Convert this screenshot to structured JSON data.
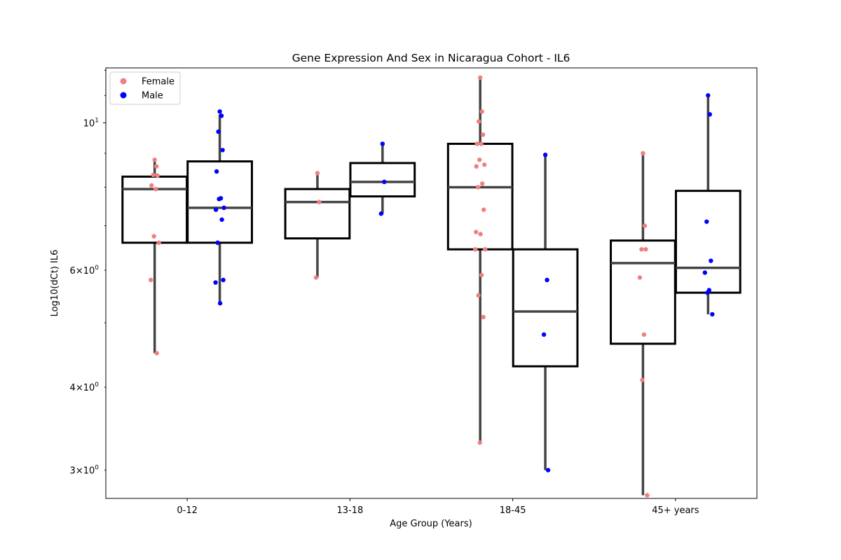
{
  "chart_data": {
    "type": "box",
    "title": "Gene Expression And Sex in Nicaragua Cohort - IL6",
    "xlabel": "Age Group (Years)",
    "ylabel": "Log10(dCt) IL6",
    "yscale": "log",
    "ylim": [
      2.72,
      12.1
    ],
    "categories": [
      "0-12",
      "13-18",
      "18-45",
      "45+ years"
    ],
    "y_ticks": [
      {
        "value": 3,
        "base": "3×10",
        "exp": "0"
      },
      {
        "value": 4,
        "base": "4×10",
        "exp": "0"
      },
      {
        "value": 6,
        "base": "6×10",
        "exp": "0"
      },
      {
        "value": 10,
        "base": "10",
        "exp": "1"
      }
    ],
    "legend": {
      "placement": "upper-left"
    },
    "colors": {
      "Female": "#f08080",
      "Male": "#0000ff",
      "box": "#000000",
      "whisker": "#444444"
    },
    "series": [
      {
        "name": "Female",
        "boxes": [
          {
            "category": "0-12",
            "whisker_low": 4.5,
            "q1": 6.6,
            "median": 7.95,
            "q3": 8.3,
            "whisker_high": 8.8
          },
          {
            "category": "13-18",
            "whisker_low": 5.85,
            "q1": 6.7,
            "median": 7.6,
            "q3": 7.95,
            "whisker_high": 8.4
          },
          {
            "category": "18-45",
            "whisker_low": 3.3,
            "q1": 6.45,
            "median": 8.0,
            "q3": 9.3,
            "whisker_high": 11.7
          },
          {
            "category": "45+ years",
            "whisker_low": 2.75,
            "q1": 4.65,
            "median": 6.15,
            "q3": 6.65,
            "whisker_high": 9.0
          }
        ],
        "points": [
          {
            "category": "0-12",
            "y": [
              8.8,
              8.6,
              8.35,
              8.33,
              8.05,
              7.95,
              6.75,
              6.6,
              5.8,
              4.5
            ]
          },
          {
            "category": "13-18",
            "y": [
              8.4,
              7.6,
              5.85
            ]
          },
          {
            "category": "18-45",
            "y": [
              11.7,
              10.4,
              10.05,
              9.6,
              9.3,
              9.3,
              8.8,
              8.65,
              8.6,
              8.1,
              8.0,
              7.4,
              6.85,
              6.8,
              6.45,
              6.45,
              5.9,
              5.5,
              5.1,
              3.3
            ]
          },
          {
            "category": "45+ years",
            "y": [
              9.0,
              7.0,
              6.45,
              6.45,
              5.85,
              4.8,
              4.1,
              2.75
            ]
          }
        ]
      },
      {
        "name": "Male",
        "boxes": [
          {
            "category": "0-12",
            "whisker_low": 5.35,
            "q1": 6.6,
            "median": 7.45,
            "q3": 8.75,
            "whisker_high": 10.3
          },
          {
            "category": "13-18",
            "whisker_low": 7.3,
            "q1": 7.75,
            "median": 8.15,
            "q3": 8.7,
            "whisker_high": 9.3
          },
          {
            "category": "18-45",
            "whisker_low": 3.0,
            "q1": 4.3,
            "median": 5.2,
            "q3": 6.45,
            "whisker_high": 8.95
          },
          {
            "category": "45+ years",
            "whisker_low": 5.15,
            "q1": 5.55,
            "median": 6.05,
            "q3": 7.9,
            "whisker_high": 11.0
          }
        ],
        "points": [
          {
            "category": "0-12",
            "y": [
              10.4,
              10.25,
              9.7,
              9.1,
              8.45,
              7.7,
              7.68,
              7.45,
              7.4,
              7.15,
              6.6,
              5.8,
              5.75,
              5.35
            ]
          },
          {
            "category": "13-18",
            "y": [
              9.3,
              8.15,
              7.3
            ]
          },
          {
            "category": "18-45",
            "y": [
              8.95,
              5.8,
              4.8,
              3.0
            ]
          },
          {
            "category": "45+ years",
            "y": [
              11.0,
              10.3,
              7.1,
              6.2,
              5.95,
              5.6,
              5.55,
              5.15
            ]
          }
        ]
      }
    ]
  }
}
